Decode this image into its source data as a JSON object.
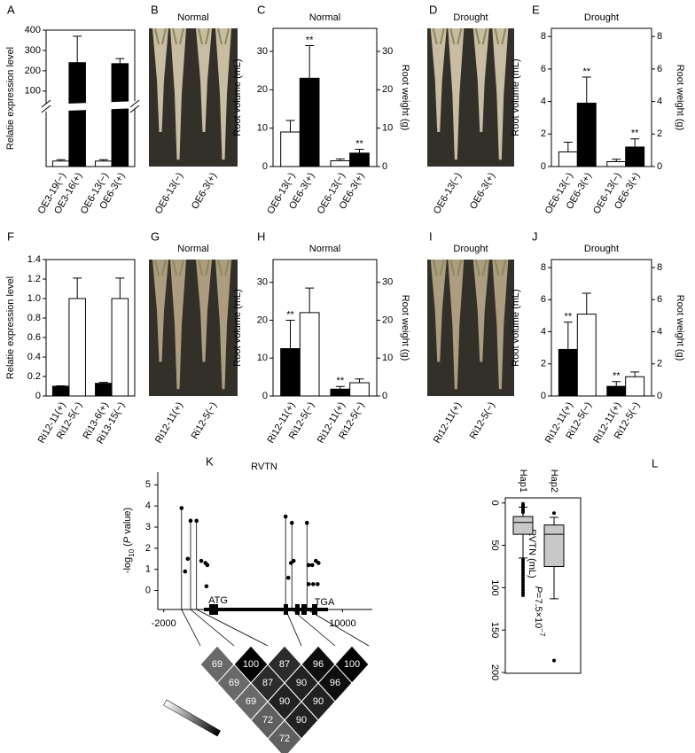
{
  "chart_data": [
    {
      "panel": "A",
      "type": "bar",
      "ylabel": "Relatie expression level",
      "categories": [
        "OE3-19(−)",
        "OE3-16(+)",
        "OE6-13(−)",
        "OE6-3(+)"
      ],
      "values": [
        2,
        240,
        2,
        235
      ],
      "errors": [
        0.5,
        130,
        0.5,
        25
      ],
      "colors": [
        "#ffffff",
        "#000000",
        "#ffffff",
        "#000000"
      ],
      "ylim": [
        0,
        400
      ],
      "yticks": [
        100,
        200,
        300,
        400
      ],
      "ybreak": [
        20,
        60
      ]
    },
    {
      "panel": "C",
      "type": "bar",
      "title": "Normal",
      "ylabel": "Root volume (mL)",
      "y2label": "Root weight (g)",
      "categories": [
        "OE6-13(−)",
        "OE6-3(+)",
        "OE6-13(−)",
        "OE6-3(+)"
      ],
      "values": [
        9,
        23,
        1.5,
        3.5
      ],
      "errors": [
        3,
        8.5,
        0.5,
        1
      ],
      "colors": [
        "#ffffff",
        "#000000",
        "#ffffff",
        "#000000"
      ],
      "significance": [
        null,
        "**",
        null,
        "**"
      ],
      "ylim": [
        0,
        36
      ],
      "yticks": [
        0,
        10,
        20,
        30
      ],
      "y2lim": [
        0,
        36
      ],
      "y2ticks": [
        0,
        10,
        20,
        30
      ]
    },
    {
      "panel": "E",
      "type": "bar",
      "title": "Drought",
      "ylabel": "Root volume (mL)",
      "y2label": "Root weight (g)",
      "categories": [
        "OE6-13(−)",
        "OE6-3(+)",
        "OE6-13(−)",
        "OE6-3(+)"
      ],
      "values": [
        0.9,
        3.9,
        0.3,
        1.2
      ],
      "errors": [
        0.6,
        1.6,
        0.15,
        0.5
      ],
      "colors": [
        "#ffffff",
        "#000000",
        "#ffffff",
        "#000000"
      ],
      "significance": [
        null,
        "**",
        null,
        "**"
      ],
      "ylim": [
        0,
        8.5
      ],
      "yticks": [
        0,
        2,
        4,
        6,
        8
      ],
      "y2lim": [
        0,
        8.5
      ],
      "y2ticks": [
        0,
        2,
        4,
        6,
        8
      ]
    },
    {
      "panel": "F",
      "type": "bar",
      "ylabel": "Relatie expression level",
      "categories": [
        "Ri12-11(+)",
        "Ri12-5(−)",
        "Ri13-6(+)",
        "Ri13-15(−)"
      ],
      "values": [
        0.1,
        1.0,
        0.13,
        1.0
      ],
      "errors": [
        0.005,
        0.21,
        0.01,
        0.21
      ],
      "colors": [
        "#000000",
        "#ffffff",
        "#000000",
        "#ffffff"
      ],
      "ylim": [
        0,
        1.4
      ],
      "yticks": [
        0,
        0.2,
        0.4,
        0.6,
        0.8,
        {
          "value": 1,
          "label": "1.0"
        },
        1.2,
        1.4
      ]
    },
    {
      "panel": "H",
      "type": "bar",
      "title": "Normal",
      "ylabel": "Root volume (mL)",
      "y2label": "Root weight (g)",
      "categories": [
        "Ri12-11(+)",
        "Ri12-5(−)",
        "Ri12-11(+)",
        "Ri12-5(−)"
      ],
      "values": [
        12.5,
        22,
        1.8,
        3.5
      ],
      "errors": [
        7.5,
        6.5,
        0.7,
        1
      ],
      "colors": [
        "#000000",
        "#ffffff",
        "#000000",
        "#ffffff"
      ],
      "significance": [
        "**",
        null,
        "**",
        null
      ],
      "ylim": [
        0,
        36
      ],
      "yticks": [
        0,
        10,
        20,
        30
      ],
      "y2lim": [
        0,
        36
      ],
      "y2ticks": [
        0,
        10,
        20,
        30
      ]
    },
    {
      "panel": "J",
      "type": "bar",
      "title": "Drought",
      "ylabel": "Root volume (mL)",
      "y2label": "Root weight (g)",
      "categories": [
        "Ri12-11(+)",
        "Ri12-5(−)",
        "Ri12-11(+)",
        "Ri12-5(−)"
      ],
      "values": [
        2.9,
        5.1,
        0.6,
        1.2
      ],
      "errors": [
        1.7,
        1.3,
        0.3,
        0.3
      ],
      "colors": [
        "#000000",
        "#ffffff",
        "#000000",
        "#ffffff"
      ],
      "significance": [
        "**",
        null,
        "**",
        null
      ],
      "ylim": [
        0,
        8.5
      ],
      "yticks": [
        0,
        2,
        4,
        6,
        8
      ],
      "y2lim": [
        0,
        8.5
      ],
      "y2ticks": [
        0,
        2,
        4,
        6,
        8
      ]
    },
    {
      "panel": "K",
      "type": "scatter",
      "title": "RVTN",
      "ylabel": [
        "-log",
        "10",
        " (",
        "P",
        " value)"
      ],
      "x": [
        -806,
        -567,
        -388,
        -200,
        200,
        520,
        800,
        925,
        866,
        6180,
        6360,
        6600,
        6540,
        6716,
        7612,
        7731,
        7970,
        8209,
        8388,
        7731,
        8030,
        8328
      ],
      "y": [
        3.9,
        0.9,
        1.5,
        3.3,
        3.3,
        1.4,
        1.3,
        1.2,
        0.2,
        3.5,
        0.6,
        3.2,
        1.3,
        1.4,
        3.2,
        1.2,
        1.2,
        1.4,
        1.3,
        0.3,
        0.3,
        0.3
      ],
      "xlim": [
        -2400,
        12000
      ],
      "xticks": [
        -2000,
        10000
      ],
      "ylim": [
        -0.9,
        5.6
      ],
      "yticks": [
        0,
        1,
        2,
        3,
        4,
        5
      ],
      "gene_labels": [
        "ATG",
        "TGA"
      ],
      "ld_values": [
        [
          69,
          100,
          87,
          96,
          100
        ],
        [
          69,
          87,
          90,
          96
        ],
        [
          69,
          90,
          90
        ],
        [
          72,
          90
        ],
        [
          72
        ]
      ]
    },
    {
      "panel": "L",
      "type": "box",
      "ylabel": "RVTN (mL)",
      "categories": [
        "Hap1",
        "Hap2"
      ],
      "inverted": true,
      "boxes": [
        {
          "min": 5,
          "q1": 16,
          "median": 23,
          "q3": 37,
          "max": 65,
          "outliers": [
            1,
            3,
            5,
            7,
            9,
            11,
            67,
            70,
            73,
            76,
            79,
            82,
            85,
            88,
            91,
            94,
            97,
            100,
            103,
            106,
            109
          ]
        },
        {
          "min": 17,
          "q1": 26,
          "median": 37,
          "q3": 75,
          "max": 113,
          "outliers": [
            12,
            186
          ]
        }
      ],
      "annotation": [
        "P",
        "=7.5×10",
        "−7"
      ],
      "ylim": [
        -6,
        201
      ],
      "yticks": [
        0,
        50,
        100,
        150,
        200
      ]
    }
  ],
  "photos": [
    {
      "panel": "B",
      "title": "Normal",
      "labels": [
        "OE6-13(−)",
        "OE6-3(+)"
      ]
    },
    {
      "panel": "D",
      "title": "Drought",
      "labels": [
        "OE6-13(−)",
        "OE6-3(+)"
      ]
    },
    {
      "panel": "G",
      "title": "Normal",
      "labels": [
        "Ri12-11(+)",
        "Ri12-5(−)"
      ]
    },
    {
      "panel": "I",
      "title": "Drought",
      "labels": [
        "Ri12-11(+)",
        "Ri12-5(−)"
      ]
    }
  ]
}
